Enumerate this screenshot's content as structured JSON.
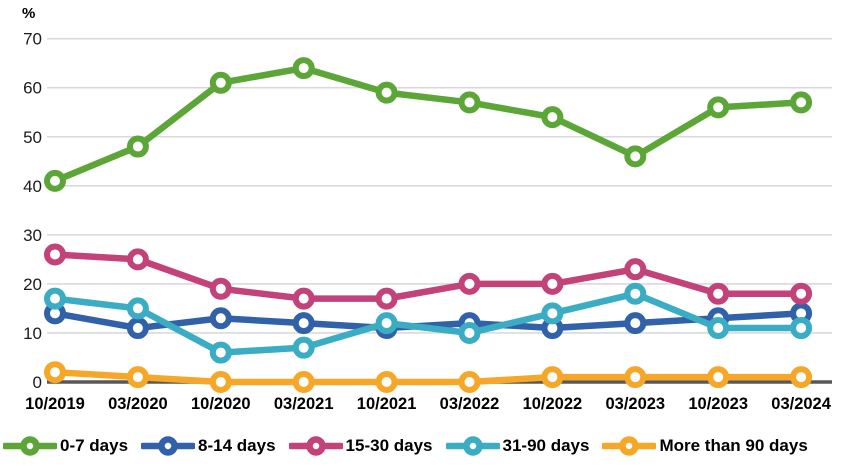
{
  "chart_data": {
    "type": "line",
    "title": "",
    "xlabel": "",
    "ylabel": "%",
    "ylim": [
      0,
      70
    ],
    "yticks": [
      0,
      10,
      20,
      30,
      40,
      50,
      60,
      70
    ],
    "grid": "horizontal",
    "grid_color": "#d9dadc",
    "axis_color": "#58585a",
    "legend_position": "bottom",
    "categories": [
      "10/2019",
      "03/2020",
      "10/2020",
      "03/2021",
      "10/2021",
      "03/2022",
      "10/2022",
      "03/2023",
      "10/2023",
      "03/2024"
    ],
    "series": [
      {
        "name": "0-7 days",
        "color": "#5ca637",
        "values": [
          41,
          48,
          61,
          64,
          59,
          57,
          54,
          46,
          56,
          57
        ]
      },
      {
        "name": "8-14 days",
        "color": "#3161a9",
        "values": [
          14,
          11,
          13,
          12,
          11,
          12,
          11,
          12,
          13,
          14
        ]
      },
      {
        "name": "15-30 days",
        "color": "#c24279",
        "values": [
          26,
          25,
          19,
          17,
          17,
          20,
          20,
          23,
          18,
          18
        ]
      },
      {
        "name": "31-90 days",
        "color": "#3aacc3",
        "values": [
          17,
          15,
          6,
          7,
          12,
          10,
          14,
          18,
          11,
          11
        ]
      },
      {
        "name": "More than 90 days",
        "color": "#f7a727",
        "values": [
          2,
          1,
          0,
          0,
          0,
          0,
          1,
          1,
          1,
          1
        ]
      }
    ],
    "marker_style": "ring-with-white-center"
  }
}
